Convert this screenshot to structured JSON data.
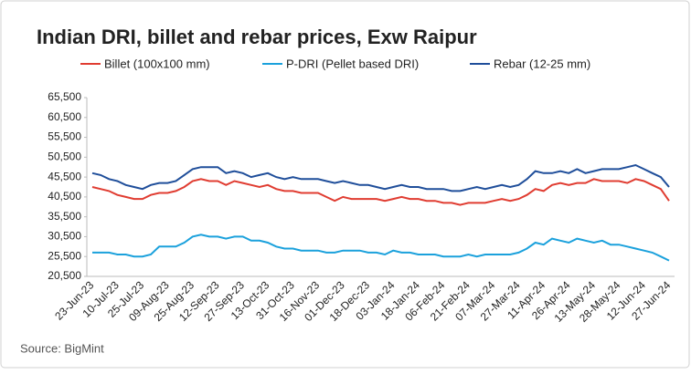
{
  "chart_data": {
    "type": "line",
    "title": "Indian DRI, billet and rebar prices, Exw Raipur",
    "source": "Source: BigMint",
    "categories": [
      "23-Jun-23",
      null,
      null,
      "10-Jul-23",
      null,
      null,
      "25-Jul-23",
      null,
      null,
      "09-Aug-23",
      null,
      null,
      "25-Aug-23",
      null,
      null,
      "12-Sep-23",
      null,
      null,
      "27-Sep-23",
      null,
      null,
      "13-Oct-23",
      null,
      null,
      "31-Oct-23",
      null,
      null,
      "16-Nov-23",
      null,
      null,
      "01-Dec-23",
      null,
      null,
      "18-Dec-23",
      null,
      null,
      "03-Jan-24",
      null,
      null,
      "18-Jan-24",
      null,
      null,
      "06-Feb-24",
      null,
      null,
      "21-Feb-24",
      null,
      null,
      "07-Mar-24",
      null,
      null,
      "27-Mar-24",
      null,
      null,
      "11-Apr-24",
      null,
      null,
      "26-Apr-24",
      null,
      null,
      "13-May-24",
      null,
      null,
      "28-May-24",
      null,
      null,
      "12-Jun-24",
      null,
      null,
      "27-Jun-24"
    ],
    "series": [
      {
        "name": "Billet (100x100 mm)",
        "color": "#e03c31",
        "values": [
          43000,
          42500,
          42000,
          41000,
          40500,
          40000,
          40000,
          41000,
          41500,
          41500,
          42000,
          43000,
          44500,
          45000,
          44500,
          44500,
          43500,
          44500,
          44000,
          43500,
          43000,
          43500,
          42500,
          42000,
          42000,
          41500,
          41500,
          41500,
          40500,
          39500,
          40500,
          40000,
          40000,
          40000,
          40000,
          39500,
          40000,
          40500,
          40000,
          40000,
          39500,
          39500,
          39000,
          39000,
          38500,
          39000,
          39000,
          39000,
          39500,
          40000,
          39500,
          40000,
          41000,
          42500,
          42000,
          43500,
          44000,
          43500,
          44000,
          44000,
          45000,
          44500,
          44500,
          44500,
          44000,
          45000,
          44500,
          43500,
          42500,
          39500
        ]
      },
      {
        "name": "P-DRI (Pellet based DRI)",
        "color": "#1ba1dc",
        "values": [
          26500,
          26500,
          26500,
          26000,
          26000,
          25500,
          25500,
          26000,
          28000,
          28000,
          28000,
          29000,
          30500,
          31000,
          30500,
          30500,
          30000,
          30500,
          30500,
          29500,
          29500,
          29000,
          28000,
          27500,
          27500,
          27000,
          27000,
          27000,
          26500,
          26500,
          27000,
          27000,
          27000,
          26500,
          26500,
          26000,
          27000,
          26500,
          26500,
          26000,
          26000,
          26000,
          25500,
          25500,
          25500,
          26000,
          25500,
          26000,
          26000,
          26000,
          26000,
          26500,
          27500,
          29000,
          28500,
          30000,
          29500,
          29000,
          30000,
          29500,
          29000,
          29500,
          28500,
          28500,
          28000,
          27500,
          27000,
          26500,
          25500,
          24500
        ]
      },
      {
        "name": "Rebar (12-25 mm)",
        "color": "#1f4e9a",
        "values": [
          46500,
          46000,
          45000,
          44500,
          43500,
          43000,
          42500,
          43500,
          44000,
          44000,
          44500,
          46000,
          47500,
          48000,
          48000,
          48000,
          46500,
          47000,
          46500,
          45500,
          46000,
          46500,
          45500,
          45000,
          45500,
          45000,
          45000,
          45000,
          44500,
          44000,
          44500,
          44000,
          43500,
          43500,
          43000,
          42500,
          43000,
          43500,
          43000,
          43000,
          42500,
          42500,
          42500,
          42000,
          42000,
          42500,
          43000,
          42500,
          43000,
          43500,
          43000,
          43500,
          45000,
          47000,
          46500,
          46500,
          47000,
          46500,
          47500,
          46500,
          47000,
          47500,
          47500,
          47500,
          48000,
          48500,
          47500,
          46500,
          45500,
          43000
        ]
      }
    ],
    "ylim": [
      20500,
      65500
    ],
    "yticks": [
      {
        "value": 20500,
        "label": "20,500"
      },
      {
        "value": 25500,
        "label": "25,500"
      },
      {
        "value": 30500,
        "label": "30,500"
      },
      {
        "value": 35500,
        "label": "35,500"
      },
      {
        "value": 40500,
        "label": "40,500"
      },
      {
        "value": 45500,
        "label": "45,500"
      },
      {
        "value": 50500,
        "label": "50,500"
      },
      {
        "value": 55500,
        "label": "55,500"
      },
      {
        "value": 60500,
        "label": "60,500"
      },
      {
        "value": 65500,
        "label": "65,500"
      }
    ],
    "grid": false
  }
}
